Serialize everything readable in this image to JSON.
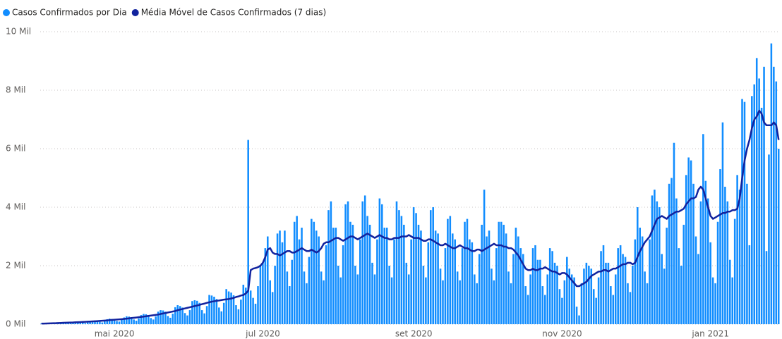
{
  "chart_data": {
    "type": "bar",
    "categories": [
      null,
      null,
      null,
      null,
      null,
      null,
      null,
      null,
      null,
      null,
      null,
      null,
      null,
      null,
      null,
      null,
      null,
      null,
      null,
      null,
      null,
      null,
      null,
      null,
      null,
      null,
      null,
      null,
      null,
      null,
      "mai 2020",
      null,
      null,
      null,
      null,
      null,
      null,
      null,
      null,
      null,
      null,
      null,
      null,
      null,
      null,
      null,
      null,
      null,
      null,
      null,
      null,
      null,
      null,
      null,
      null,
      null,
      null,
      null,
      null,
      null,
      null,
      null,
      null,
      null,
      null,
      null,
      null,
      null,
      null,
      null,
      null,
      null,
      null,
      null,
      null,
      null,
      null,
      null,
      null,
      null,
      null,
      null,
      null,
      null,
      null,
      null,
      null,
      null,
      null,
      null,
      null,
      "jul 2020",
      null,
      null,
      null,
      null,
      null,
      null,
      null,
      null,
      null,
      null,
      null,
      null,
      null,
      null,
      null,
      null,
      null,
      null,
      null,
      null,
      null,
      null,
      null,
      null,
      null,
      null,
      null,
      null,
      null,
      null,
      null,
      null,
      null,
      null,
      null,
      null,
      null,
      null,
      null,
      null,
      null,
      null,
      null,
      null,
      null,
      null,
      null,
      null,
      null,
      null,
      null,
      null,
      null,
      null,
      null,
      null,
      null,
      null,
      null,
      null,
      null,
      "set 2020",
      null,
      null,
      null,
      null,
      null,
      null,
      null,
      null,
      null,
      null,
      null,
      null,
      null,
      null,
      null,
      null,
      null,
      null,
      null,
      null,
      null,
      null,
      null,
      null,
      null,
      null,
      null,
      null,
      null,
      null,
      null,
      null,
      null,
      null,
      null,
      null,
      null,
      null,
      null,
      null,
      null,
      null,
      null,
      null,
      null,
      null,
      null,
      null,
      null,
      null,
      null,
      null,
      null,
      null,
      null,
      null,
      null,
      null,
      null,
      null,
      "nov 2020",
      null,
      null,
      null,
      null,
      null,
      null,
      null,
      null,
      null,
      null,
      null,
      null,
      null,
      null,
      null,
      null,
      null,
      null,
      null,
      null,
      null,
      null,
      null,
      null,
      null,
      null,
      null,
      null,
      null,
      null,
      null,
      null,
      null,
      null,
      null,
      null,
      null,
      null,
      null,
      null,
      null,
      null,
      null,
      null,
      null,
      null,
      null,
      null,
      null,
      null,
      null,
      null,
      null,
      null,
      null,
      null,
      null,
      null,
      null,
      null,
      "jan 2021",
      null,
      null,
      null,
      null,
      null,
      null,
      null,
      null,
      null,
      null,
      null,
      null,
      null,
      null,
      null,
      null,
      null,
      null,
      null,
      null,
      null,
      null,
      null,
      null,
      null,
      null,
      null,
      null
    ],
    "series": [
      {
        "name": "Casos Confirmados por Dia",
        "type": "bar",
        "color": "#118dff",
        "values": [
          25,
          26,
          27,
          20,
          15,
          30,
          45,
          50,
          55,
          52,
          35,
          28,
          50,
          75,
          80,
          85,
          80,
          55,
          40,
          70,
          115,
          120,
          130,
          120,
          80,
          60,
          110,
          170,
          190,
          180,
          170,
          110,
          90,
          150,
          230,
          270,
          260,
          240,
          160,
          120,
          200,
          310,
          350,
          340,
          310,
          210,
          160,
          270,
          430,
          480,
          470,
          430,
          280,
          220,
          360,
          580,
          650,
          620,
          570,
          380,
          300,
          480,
          790,
          820,
          800,
          730,
          480,
          370,
          620,
          1000,
          980,
          940,
          860,
          570,
          440,
          730,
          1200,
          1120,
          1080,
          990,
          650,
          510,
          840,
          1350,
          1250,
          6300,
          1150,
          900,
          700,
          1300,
          2000,
          2100,
          2600,
          3000,
          1500,
          1100,
          2000,
          3100,
          3200,
          2800,
          3200,
          1800,
          1300,
          2200,
          3500,
          3700,
          2900,
          3300,
          1800,
          1400,
          2300,
          3600,
          3500,
          3200,
          3000,
          1800,
          1500,
          2700,
          3900,
          4200,
          3300,
          3300,
          2000,
          1600,
          2700,
          4100,
          4200,
          3500,
          3400,
          2000,
          1700,
          2900,
          4200,
          4400,
          3700,
          3400,
          2100,
          1700,
          2900,
          4300,
          4100,
          3300,
          3300,
          2000,
          1600,
          2900,
          4200,
          3900,
          3700,
          3400,
          2100,
          1700,
          2900,
          4000,
          3800,
          3400,
          3200,
          2000,
          1600,
          2800,
          3900,
          4000,
          3200,
          3100,
          1900,
          1500,
          2600,
          3600,
          3700,
          3100,
          2900,
          1800,
          1500,
          2600,
          3500,
          3600,
          2900,
          2800,
          1700,
          1400,
          2400,
          3400,
          4600,
          3000,
          3200,
          1900,
          1500,
          2600,
          3500,
          3500,
          3400,
          3100,
          1800,
          1400,
          2400,
          3300,
          3000,
          2600,
          2400,
          1300,
          1000,
          1700,
          2600,
          2700,
          2200,
          2200,
          1300,
          1000,
          1700,
          2600,
          2500,
          2100,
          2000,
          1200,
          900,
          1500,
          2300,
          1900,
          1700,
          1600,
          600,
          300,
          1400,
          1900,
          2100,
          2000,
          1900,
          1200,
          900,
          1600,
          2500,
          2700,
          2100,
          2100,
          1300,
          1000,
          1700,
          2600,
          2700,
          2400,
          2300,
          1400,
          1100,
          2000,
          2900,
          4000,
          3300,
          3000,
          1800,
          1400,
          2900,
          4400,
          4600,
          4200,
          4000,
          2400,
          1900,
          3300,
          4800,
          5000,
          6200,
          4300,
          2600,
          2000,
          3400,
          5100,
          5700,
          5600,
          4800,
          3000,
          2400,
          4200,
          6500,
          4900,
          4300,
          2800,
          1600,
          1400,
          3500,
          5300,
          6900,
          4700,
          4200,
          2200,
          1600,
          3600,
          5100,
          4600,
          7700,
          7600,
          4800,
          2700,
          7800,
          8200,
          9100,
          8400,
          7400,
          8800,
          2500,
          5800,
          9600,
          8800,
          8300,
          6000
        ]
      },
      {
        "name": "Média Móvel de Casos Confirmados (7 dias)",
        "type": "line",
        "color": "#12239e",
        "values": [
          20,
          22,
          25,
          27,
          30,
          32,
          35,
          40,
          43,
          47,
          50,
          53,
          57,
          60,
          65,
          69,
          73,
          77,
          81,
          86,
          90,
          95,
          100,
          106,
          112,
          118,
          124,
          130,
          140,
          147,
          153,
          160,
          167,
          173,
          180,
          190,
          200,
          210,
          220,
          230,
          240,
          250,
          260,
          272,
          283,
          295,
          307,
          318,
          330,
          350,
          367,
          383,
          400,
          417,
          433,
          450,
          480,
          500,
          520,
          540,
          560,
          580,
          600,
          620,
          640,
          660,
          685,
          705,
          730,
          750,
          770,
          785,
          800,
          810,
          825,
          840,
          850,
          860,
          880,
          900,
          930,
          950,
          980,
          1000,
          1050,
          1150,
          1850,
          1900,
          1920,
          1950,
          2000,
          2100,
          2300,
          2550,
          2600,
          2450,
          2400,
          2400,
          2350,
          2400,
          2450,
          2500,
          2500,
          2450,
          2450,
          2500,
          2550,
          2600,
          2550,
          2500,
          2500,
          2550,
          2500,
          2450,
          2500,
          2600,
          2750,
          2800,
          2800,
          2850,
          2900,
          2950,
          2950,
          2900,
          2850,
          2900,
          2950,
          3000,
          3000,
          2950,
          2900,
          2950,
          3000,
          3050,
          3100,
          3050,
          3000,
          2950,
          3000,
          3050,
          3000,
          2950,
          2950,
          2900,
          2900,
          2950,
          2950,
          2950,
          3000,
          3000,
          3000,
          3050,
          3000,
          2950,
          2950,
          2950,
          2900,
          2850,
          2850,
          2900,
          2900,
          2850,
          2800,
          2750,
          2700,
          2700,
          2750,
          2700,
          2650,
          2600,
          2600,
          2650,
          2700,
          2650,
          2600,
          2600,
          2550,
          2500,
          2500,
          2550,
          2550,
          2500,
          2550,
          2600,
          2650,
          2700,
          2750,
          2700,
          2700,
          2700,
          2650,
          2650,
          2600,
          2600,
          2550,
          2450,
          2350,
          2200,
          2050,
          1900,
          1850,
          1850,
          1900,
          1850,
          1850,
          1900,
          1900,
          1950,
          1900,
          1850,
          1800,
          1800,
          1750,
          1700,
          1750,
          1750,
          1700,
          1600,
          1500,
          1400,
          1300,
          1300,
          1350,
          1400,
          1450,
          1550,
          1650,
          1700,
          1750,
          1800,
          1800,
          1850,
          1850,
          1800,
          1850,
          1900,
          1900,
          1950,
          2000,
          2050,
          2050,
          2100,
          2100,
          2050,
          2100,
          2300,
          2500,
          2650,
          2800,
          2900,
          3000,
          3200,
          3400,
          3600,
          3650,
          3700,
          3650,
          3600,
          3700,
          3750,
          3800,
          3850,
          3850,
          3900,
          3950,
          4100,
          4200,
          4300,
          4300,
          4350,
          4600,
          4700,
          4600,
          4300,
          4000,
          3700,
          3600,
          3650,
          3700,
          3750,
          3800,
          3800,
          3850,
          3850,
          3900,
          3900,
          3950,
          4300,
          5000,
          5600,
          6000,
          6300,
          6700,
          7000,
          7100,
          7300,
          7200,
          6900,
          6800,
          6800,
          6800,
          6900,
          6800,
          6300
        ]
      }
    ],
    "ylim": [
      0,
      10000
    ],
    "yticks": [
      {
        "value": 0,
        "label": "0 Mil"
      },
      {
        "value": 2000,
        "label": "2 Mil"
      },
      {
        "value": 4000,
        "label": "4 Mil"
      },
      {
        "value": 6000,
        "label": "6 Mil"
      },
      {
        "value": 8000,
        "label": "8 Mil"
      },
      {
        "value": 10000,
        "label": "10 Mil"
      }
    ],
    "grid": true,
    "legend": "top-left"
  }
}
